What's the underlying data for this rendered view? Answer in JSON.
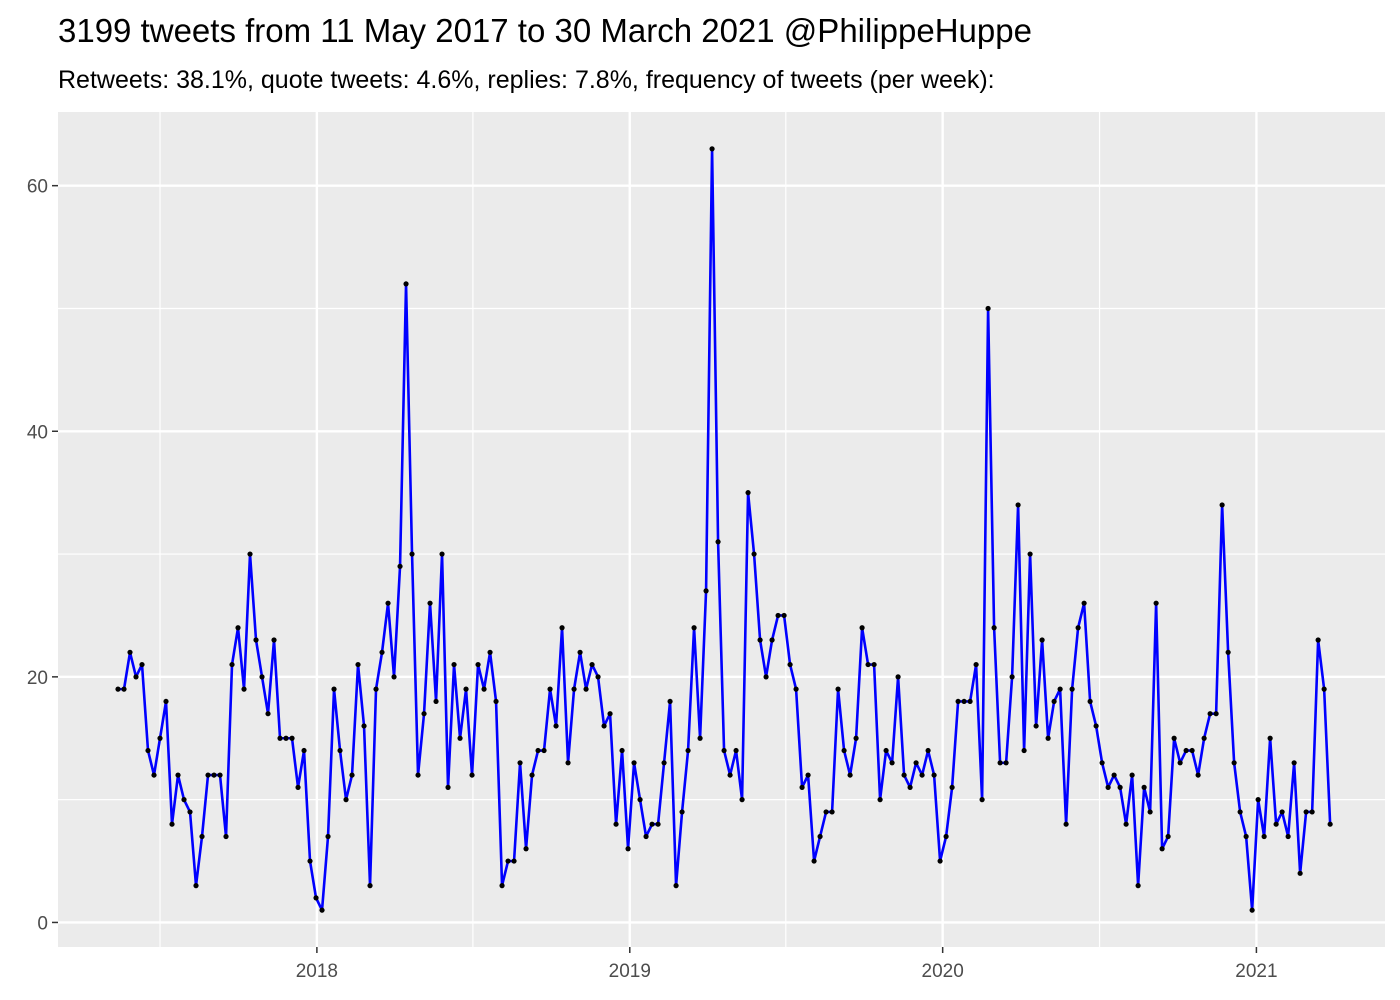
{
  "chart_data": {
    "type": "line",
    "title": "3199 tweets from 11 May 2017 to 30 March 2021 @PhilippeHuppe",
    "subtitle": "Retweets: 38.1%, quote tweets: 4.6%, replies: 7.8%, frequency of tweets (per week):",
    "xlabel": "",
    "ylabel": "",
    "x_start": "2017-05-14",
    "x_step_days": 7,
    "xlim": [
      "2017-03-05",
      "2021-05-31"
    ],
    "ylim": [
      -2,
      66
    ],
    "x_ticks": [
      "2018",
      "2019",
      "2020",
      "2021"
    ],
    "y_ticks": [
      "0",
      "20",
      "40",
      "60"
    ],
    "grid": true,
    "legend": "none",
    "line_color": "#0000ff",
    "point_color": "#000000",
    "panel_color": "#ebebeb",
    "series": [
      {
        "values": [
          19,
          19,
          22,
          20,
          21,
          14,
          12,
          15,
          18,
          8,
          12,
          10,
          9,
          3,
          7,
          12,
          12,
          12,
          7,
          21,
          24,
          19,
          30,
          23,
          20,
          17,
          23,
          15,
          15,
          15,
          11,
          14,
          5,
          2,
          1,
          7,
          19,
          14,
          10,
          12,
          21,
          16,
          3,
          19,
          22,
          26,
          20,
          29,
          52,
          30,
          12,
          17,
          26,
          18,
          30,
          11,
          21,
          15,
          19,
          12,
          21,
          19,
          22,
          18,
          3,
          5,
          5,
          13,
          6,
          12,
          14,
          14,
          19,
          16,
          24,
          13,
          19,
          22,
          19,
          21,
          20,
          16,
          17,
          8,
          14,
          6,
          13,
          10,
          7,
          8,
          8,
          13,
          18,
          3,
          9,
          14,
          24,
          15,
          27,
          63,
          31,
          14,
          12,
          14,
          10,
          35,
          30,
          23,
          20,
          23,
          25,
          25,
          21,
          19,
          11,
          12,
          5,
          7,
          9,
          9,
          19,
          14,
          12,
          15,
          24,
          21,
          21,
          10,
          14,
          13,
          20,
          12,
          11,
          13,
          12,
          14,
          12,
          5,
          7,
          11,
          18,
          18,
          18,
          21,
          10,
          50,
          24,
          13,
          13,
          20,
          34,
          14,
          30,
          16,
          23,
          15,
          18,
          19,
          8,
          19,
          24,
          26,
          18,
          16,
          13,
          11,
          12,
          11,
          8,
          12,
          3,
          11,
          9,
          26,
          6,
          7,
          15,
          13,
          14,
          14,
          12,
          15,
          17,
          17,
          34,
          22,
          13,
          9,
          7,
          1,
          10,
          7,
          15,
          8,
          9,
          7,
          13,
          4,
          9,
          9,
          23,
          19,
          8
        ]
      }
    ]
  }
}
